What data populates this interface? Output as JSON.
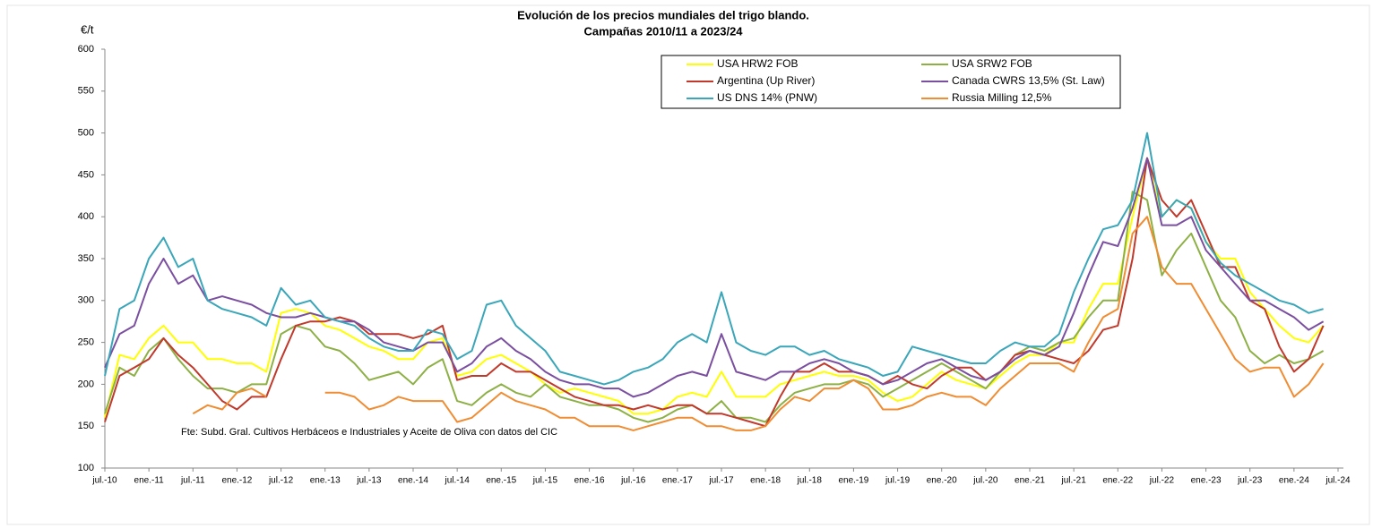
{
  "chart_data": {
    "type": "line",
    "title": "Evolución de los precios mundiales del trigo blando.",
    "subtitle": "Campañas 2010/11 a 2023/24",
    "y_label": "€/t",
    "source": "Fte: Subd. Gral. Cultivos Herbáceos e Industriales y Aceite de Oliva con datos del CIC",
    "x": [
      "2010-07",
      "2010-09",
      "2010-11",
      "2011-01",
      "2011-03",
      "2011-05",
      "2011-07",
      "2011-09",
      "2011-11",
      "2012-01",
      "2012-03",
      "2012-05",
      "2012-07",
      "2012-09",
      "2012-11",
      "2013-01",
      "2013-03",
      "2013-05",
      "2013-07",
      "2013-09",
      "2013-11",
      "2014-01",
      "2014-03",
      "2014-05",
      "2014-07",
      "2014-09",
      "2014-11",
      "2015-01",
      "2015-03",
      "2015-05",
      "2015-07",
      "2015-09",
      "2015-11",
      "2016-01",
      "2016-03",
      "2016-05",
      "2016-07",
      "2016-09",
      "2016-11",
      "2017-01",
      "2017-03",
      "2017-05",
      "2017-07",
      "2017-09",
      "2017-11",
      "2018-01",
      "2018-03",
      "2018-05",
      "2018-07",
      "2018-09",
      "2018-11",
      "2019-01",
      "2019-03",
      "2019-05",
      "2019-07",
      "2019-09",
      "2019-11",
      "2020-01",
      "2020-03",
      "2020-05",
      "2020-07",
      "2020-09",
      "2020-11",
      "2021-01",
      "2021-03",
      "2021-05",
      "2021-07",
      "2021-09",
      "2021-11",
      "2022-01",
      "2022-03",
      "2022-05",
      "2022-07",
      "2022-09",
      "2022-11",
      "2023-01",
      "2023-03",
      "2023-05",
      "2023-07",
      "2023-09",
      "2023-11",
      "2024-01",
      "2024-03",
      "2024-05"
    ],
    "xlim": [
      "2010-07",
      "2024-07"
    ],
    "xticks": [
      {
        "value": "2010-07",
        "label": "jul.-10"
      },
      {
        "value": "2011-01",
        "label": "ene.-11"
      },
      {
        "value": "2011-07",
        "label": "jul.-11"
      },
      {
        "value": "2012-01",
        "label": "ene.-12"
      },
      {
        "value": "2012-07",
        "label": "jul.-12"
      },
      {
        "value": "2013-01",
        "label": "ene.-13"
      },
      {
        "value": "2013-07",
        "label": "jul.-13"
      },
      {
        "value": "2014-01",
        "label": "ene.-14"
      },
      {
        "value": "2014-07",
        "label": "jul.-14"
      },
      {
        "value": "2015-01",
        "label": "ene.-15"
      },
      {
        "value": "2015-07",
        "label": "jul.-15"
      },
      {
        "value": "2016-01",
        "label": "ene.-16"
      },
      {
        "value": "2016-07",
        "label": "jul.-16"
      },
      {
        "value": "2017-01",
        "label": "ene.-17"
      },
      {
        "value": "2017-07",
        "label": "jul.-17"
      },
      {
        "value": "2018-01",
        "label": "ene.-18"
      },
      {
        "value": "2018-07",
        "label": "jul.-18"
      },
      {
        "value": "2019-01",
        "label": "ene.-19"
      },
      {
        "value": "2019-07",
        "label": "jul.-19"
      },
      {
        "value": "2020-01",
        "label": "ene.-20"
      },
      {
        "value": "2020-07",
        "label": "jul.-20"
      },
      {
        "value": "2021-01",
        "label": "ene.-21"
      },
      {
        "value": "2021-07",
        "label": "jul.-21"
      },
      {
        "value": "2022-01",
        "label": "ene.-22"
      },
      {
        "value": "2022-07",
        "label": "jul.-22"
      },
      {
        "value": "2023-01",
        "label": "ene.-23"
      },
      {
        "value": "2023-07",
        "label": "jul.-23"
      },
      {
        "value": "2024-01",
        "label": "ene.-24"
      },
      {
        "value": "2024-07",
        "label": "jul.-24"
      }
    ],
    "ylim": [
      100,
      600
    ],
    "yticks": [
      100,
      150,
      200,
      250,
      300,
      350,
      400,
      450,
      500,
      550,
      600
    ],
    "grid": false,
    "series": [
      {
        "name": "USA HRW2 FOB",
        "color": "#ffff00",
        "values": [
          160,
          235,
          230,
          255,
          270,
          250,
          250,
          230,
          230,
          225,
          225,
          215,
          285,
          290,
          285,
          270,
          265,
          255,
          245,
          240,
          230,
          230,
          250,
          255,
          210,
          215,
          230,
          235,
          225,
          215,
          200,
          190,
          195,
          190,
          185,
          180,
          165,
          165,
          170,
          185,
          190,
          185,
          215,
          185,
          185,
          185,
          200,
          205,
          210,
          215,
          210,
          210,
          205,
          190,
          180,
          185,
          200,
          215,
          205,
          200,
          195,
          210,
          225,
          235,
          235,
          250,
          250,
          290,
          320,
          320,
          400,
          470,
          400,
          420,
          410,
          370,
          350,
          350,
          310,
          290,
          270,
          255,
          250,
          270
        ]
      },
      {
        "name": "USA SRW2 FOB",
        "color": "#8db045",
        "values": [
          165,
          220,
          210,
          240,
          255,
          230,
          210,
          195,
          195,
          190,
          200,
          200,
          260,
          270,
          265,
          245,
          240,
          225,
          205,
          210,
          215,
          200,
          220,
          230,
          180,
          175,
          190,
          200,
          190,
          185,
          200,
          185,
          180,
          175,
          175,
          170,
          160,
          155,
          160,
          170,
          175,
          165,
          180,
          160,
          160,
          155,
          175,
          190,
          195,
          200,
          200,
          205,
          200,
          185,
          195,
          205,
          215,
          225,
          215,
          205,
          195,
          215,
          235,
          245,
          240,
          250,
          255,
          280,
          300,
          300,
          430,
          420,
          330,
          360,
          380,
          340,
          300,
          280,
          240,
          225,
          235,
          225,
          230,
          240
        ]
      },
      {
        "name": "Argentina (Up River)",
        "color": "#c0392b",
        "values": [
          155,
          210,
          220,
          230,
          255,
          235,
          220,
          200,
          180,
          170,
          185,
          185,
          230,
          270,
          275,
          275,
          280,
          275,
          260,
          260,
          260,
          255,
          260,
          270,
          205,
          210,
          210,
          225,
          215,
          215,
          205,
          195,
          185,
          180,
          175,
          175,
          170,
          175,
          170,
          175,
          175,
          165,
          165,
          160,
          155,
          150,
          185,
          215,
          215,
          225,
          215,
          215,
          210,
          200,
          210,
          200,
          195,
          210,
          220,
          220,
          205,
          215,
          235,
          240,
          235,
          230,
          225,
          240,
          265,
          270,
          350,
          470,
          420,
          400,
          420,
          380,
          340,
          340,
          300,
          290,
          245,
          215,
          230,
          270
        ]
      },
      {
        "name": "Canada CWRS 13,5% (St. Law)",
        "color": "#7b4fa0",
        "values": [
          220,
          260,
          270,
          320,
          350,
          320,
          330,
          300,
          305,
          300,
          295,
          285,
          280,
          280,
          285,
          280,
          275,
          275,
          265,
          250,
          245,
          240,
          250,
          250,
          215,
          225,
          245,
          255,
          240,
          230,
          215,
          205,
          200,
          200,
          195,
          195,
          185,
          190,
          200,
          210,
          215,
          210,
          260,
          215,
          210,
          205,
          215,
          215,
          225,
          230,
          225,
          215,
          210,
          200,
          205,
          215,
          225,
          230,
          220,
          210,
          205,
          215,
          230,
          240,
          235,
          245,
          285,
          330,
          370,
          365,
          410,
          470,
          390,
          390,
          400,
          360,
          340,
          320,
          300,
          300,
          290,
          280,
          265,
          275
        ]
      },
      {
        "name": "US DNS 14% (PNW)",
        "color": "#3aa6b9",
        "values": [
          210,
          290,
          300,
          350,
          375,
          340,
          350,
          300,
          290,
          285,
          280,
          270,
          315,
          295,
          300,
          280,
          275,
          270,
          255,
          245,
          240,
          240,
          265,
          260,
          230,
          240,
          295,
          300,
          270,
          255,
          240,
          215,
          210,
          205,
          200,
          205,
          215,
          220,
          230,
          250,
          260,
          250,
          310,
          250,
          240,
          235,
          245,
          245,
          235,
          240,
          230,
          225,
          220,
          210,
          215,
          245,
          240,
          235,
          230,
          225,
          225,
          240,
          250,
          245,
          245,
          260,
          310,
          350,
          385,
          390,
          420,
          500,
          400,
          420,
          410,
          370,
          345,
          330,
          320,
          310,
          300,
          295,
          285,
          290
        ]
      },
      {
        "name": "Russia Milling 12,5%",
        "color": "#f08c32",
        "values": [
          null,
          null,
          null,
          null,
          null,
          null,
          165,
          175,
          170,
          190,
          195,
          185,
          null,
          null,
          null,
          190,
          190,
          185,
          170,
          175,
          185,
          180,
          180,
          180,
          155,
          160,
          175,
          190,
          180,
          175,
          170,
          160,
          160,
          150,
          150,
          150,
          145,
          150,
          155,
          160,
          160,
          150,
          150,
          145,
          145,
          150,
          170,
          185,
          180,
          195,
          195,
          205,
          195,
          170,
          170,
          175,
          185,
          190,
          185,
          185,
          175,
          195,
          210,
          225,
          225,
          225,
          215,
          250,
          280,
          290,
          380,
          400,
          340,
          320,
          320,
          290,
          260,
          230,
          215,
          220,
          220,
          185,
          200,
          225
        ]
      }
    ]
  }
}
